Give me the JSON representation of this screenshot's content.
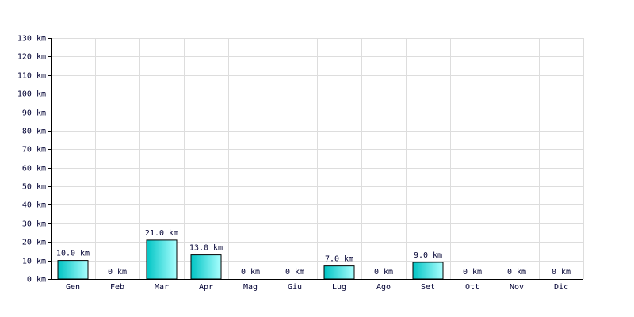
{
  "chart_data": {
    "type": "bar",
    "categories": [
      "Gen",
      "Feb",
      "Mar",
      "Apr",
      "Mag",
      "Giu",
      "Lug",
      "Ago",
      "Set",
      "Ott",
      "Nov",
      "Dic"
    ],
    "values": [
      10,
      0,
      21,
      13,
      0,
      0,
      7,
      0,
      9,
      0,
      0,
      0
    ],
    "value_labels": [
      "10.0 km",
      "0 km",
      "21.0 km",
      "13.0 km",
      "0 km",
      "0 km",
      "7.0 km",
      "0 km",
      "9.0 km",
      "0 km",
      "0 km",
      "0 km"
    ],
    "color": "#00c4c4",
    "ylim": [
      0,
      130
    ],
    "yticks": [
      {
        "value": 0,
        "label": "0 km"
      },
      {
        "value": 10,
        "label": "10 km"
      },
      {
        "value": 20,
        "label": "20 km"
      },
      {
        "value": 30,
        "label": "30 km"
      },
      {
        "value": 40,
        "label": "40 km"
      },
      {
        "value": 50,
        "label": "50 km"
      },
      {
        "value": 60,
        "label": "60 km"
      },
      {
        "value": 70,
        "label": "70 km"
      },
      {
        "value": 80,
        "label": "80 km"
      },
      {
        "value": 90,
        "label": "90 km"
      },
      {
        "value": 100,
        "label": "100 km"
      },
      {
        "value": 110,
        "label": "110 km"
      },
      {
        "value": 120,
        "label": "120 km"
      },
      {
        "value": 130,
        "label": "130 km"
      }
    ],
    "grid": true
  }
}
